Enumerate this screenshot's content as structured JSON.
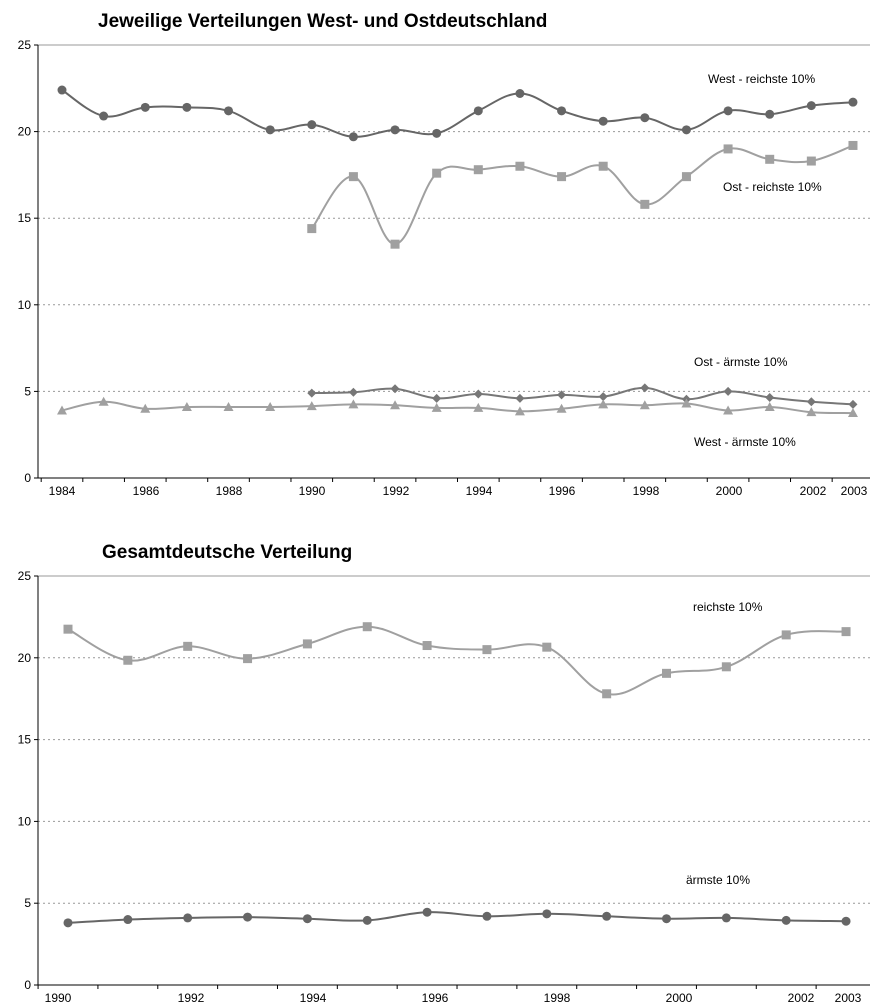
{
  "chart_data": [
    {
      "type": "line",
      "title": "Jeweilige Verteilungen West- und Ostdeutschland",
      "xlabel": "",
      "ylabel": "",
      "ylim": [
        0,
        25
      ],
      "yticks": [
        0,
        5,
        10,
        15,
        20,
        25
      ],
      "xlim": [
        1984,
        2003
      ],
      "xtick_labels": [
        "1984",
        "1986",
        "1988",
        "1990",
        "1992",
        "1994",
        "1996",
        "1998",
        "2000",
        "2002",
        "2003"
      ],
      "grid": "horizontal dotted",
      "legend": "none",
      "series": [
        {
          "name": "West - reichste 10%",
          "marker": "circle",
          "color": "#666666",
          "x": [
            1984,
            1985,
            1986,
            1987,
            1988,
            1989,
            1990,
            1991,
            1992,
            1993,
            1994,
            1995,
            1996,
            1997,
            1998,
            1999,
            2000,
            2001,
            2002,
            2003
          ],
          "values": [
            22.4,
            20.9,
            21.4,
            21.4,
            21.2,
            20.1,
            20.4,
            19.7,
            20.1,
            19.9,
            21.2,
            22.2,
            21.2,
            20.6,
            20.8,
            20.1,
            21.2,
            21.0,
            21.5,
            21.7
          ]
        },
        {
          "name": "Ost - reichste 10%",
          "marker": "square",
          "color": "#a0a0a0",
          "x": [
            1990,
            1991,
            1992,
            1993,
            1994,
            1995,
            1996,
            1997,
            1998,
            1999,
            2000,
            2001,
            2002,
            2003
          ],
          "values": [
            14.4,
            17.4,
            13.5,
            17.6,
            17.8,
            18.0,
            17.4,
            18.0,
            15.8,
            17.4,
            19.0,
            18.4,
            18.3,
            19.2
          ]
        },
        {
          "name": "Ost - ärmste 10%",
          "marker": "diamond",
          "color": "#777777",
          "x": [
            1990,
            1991,
            1992,
            1993,
            1994,
            1995,
            1996,
            1997,
            1998,
            1999,
            2000,
            2001,
            2002,
            2003
          ],
          "values": [
            4.9,
            4.95,
            5.15,
            4.6,
            4.85,
            4.6,
            4.8,
            4.7,
            5.2,
            4.55,
            5.0,
            4.65,
            4.4,
            4.25
          ]
        },
        {
          "name": "West - ärmste 10%",
          "marker": "triangle",
          "color": "#a0a0a0",
          "x": [
            1984,
            1985,
            1986,
            1987,
            1988,
            1989,
            1990,
            1991,
            1992,
            1993,
            1994,
            1995,
            1996,
            1997,
            1998,
            1999,
            2000,
            2001,
            2002,
            2003
          ],
          "values": [
            3.9,
            4.4,
            4.0,
            4.1,
            4.1,
            4.1,
            4.15,
            4.25,
            4.2,
            4.05,
            4.05,
            3.85,
            4.0,
            4.25,
            4.2,
            4.3,
            3.9,
            4.1,
            3.8,
            3.75
          ]
        }
      ]
    },
    {
      "type": "line",
      "title": "Gesamtdeutsche Verteilung",
      "xlabel": "",
      "ylabel": "",
      "ylim": [
        0,
        25
      ],
      "yticks": [
        0,
        5,
        10,
        15,
        20,
        25
      ],
      "xlim": [
        1990,
        2003
      ],
      "xtick_labels": [
        "1990",
        "1992",
        "1994",
        "1996",
        "1998",
        "2000",
        "2002",
        "2003"
      ],
      "grid": "horizontal dotted",
      "legend": "none",
      "series": [
        {
          "name": "reichste 10%",
          "marker": "square",
          "color": "#a0a0a0",
          "x": [
            1990,
            1991,
            1992,
            1993,
            1994,
            1995,
            1996,
            1997,
            1998,
            1999,
            2000,
            2001,
            2002,
            2003
          ],
          "values": [
            21.75,
            19.85,
            20.7,
            19.95,
            20.85,
            21.9,
            20.75,
            20.5,
            20.65,
            17.8,
            19.05,
            19.45,
            21.4,
            21.6
          ]
        },
        {
          "name": "ärmste 10%",
          "marker": "circle",
          "color": "#666666",
          "x": [
            1990,
            1991,
            1992,
            1993,
            1994,
            1995,
            1996,
            1997,
            1998,
            1999,
            2000,
            2001,
            2002,
            2003
          ],
          "values": [
            3.8,
            4.0,
            4.1,
            4.15,
            4.05,
            3.95,
            4.45,
            4.2,
            4.35,
            4.2,
            4.05,
            4.1,
            3.95,
            3.9
          ]
        }
      ]
    }
  ]
}
